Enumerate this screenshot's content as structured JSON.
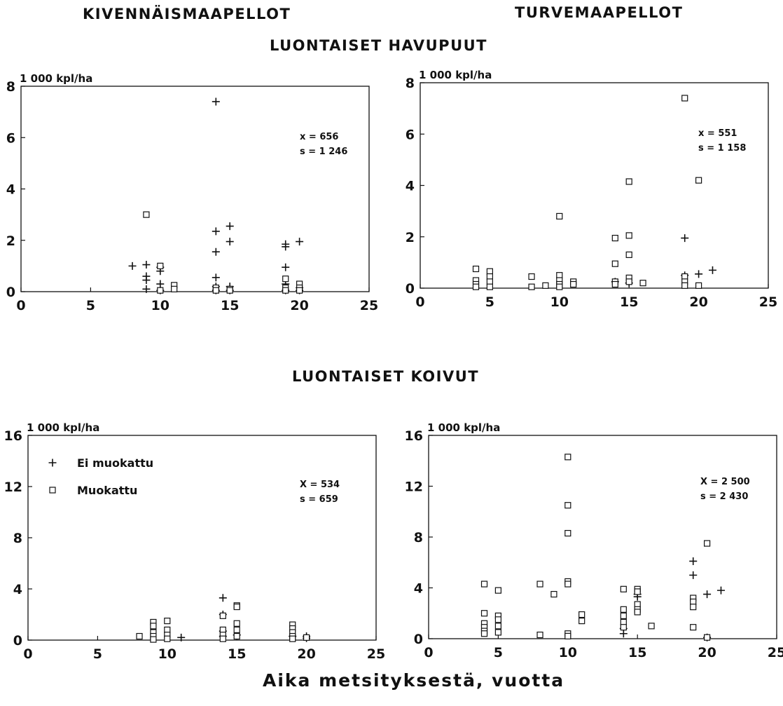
{
  "headings": {
    "col_left": "KIVENNÄISMAAPELLOT",
    "col_right": "TURVEMAAPELLOT",
    "row_top": "LUONTAISET HAVUPUUT",
    "row_bottom": "LUONTAISET KOIVUT",
    "x_caption": "Aika metsityksestä, vuotta"
  },
  "legend": {
    "plus_label": "Ei muokattu",
    "square_label": "Muokattu"
  },
  "chart_data": [
    {
      "type": "scatter",
      "ylabel": "1 000 kpl/ha",
      "xlim": [
        0,
        25
      ],
      "ylim": [
        0,
        8
      ],
      "xticks": [
        0,
        5,
        10,
        15,
        20,
        25
      ],
      "yticks": [
        0,
        2,
        4,
        6,
        8
      ],
      "stats": [
        "x = 656",
        "s = 1 246"
      ],
      "series": [
        {
          "name": "Ei muokattu",
          "marker": "plus",
          "points": [
            [
              8,
              1.0
            ],
            [
              9,
              1.05
            ],
            [
              9,
              0.6
            ],
            [
              9,
              0.45
            ],
            [
              9,
              0.1
            ],
            [
              10,
              0.95
            ],
            [
              10,
              0.8
            ],
            [
              10,
              0.3
            ],
            [
              10,
              0.05
            ],
            [
              14,
              7.4
            ],
            [
              14,
              2.35
            ],
            [
              14,
              1.55
            ],
            [
              14,
              0.55
            ],
            [
              14,
              0.2
            ],
            [
              14,
              0.05
            ],
            [
              15,
              2.55
            ],
            [
              15,
              1.95
            ],
            [
              15,
              0.2
            ],
            [
              15,
              0.05
            ],
            [
              19,
              1.85
            ],
            [
              19,
              1.75
            ],
            [
              19,
              0.95
            ],
            [
              19,
              0.3
            ],
            [
              19,
              0.05
            ],
            [
              20,
              1.95
            ],
            [
              20,
              0.15
            ],
            [
              20,
              0.05
            ]
          ]
        },
        {
          "name": "Muokattu",
          "marker": "square",
          "points": [
            [
              9,
              3.0
            ],
            [
              10,
              1.0
            ],
            [
              10,
              0.05
            ],
            [
              11,
              0.25
            ],
            [
              11,
              0.1
            ],
            [
              14,
              0.15
            ],
            [
              14,
              0.05
            ],
            [
              15,
              0.1
            ],
            [
              15,
              0.05
            ],
            [
              19,
              0.5
            ],
            [
              19,
              0.15
            ],
            [
              19,
              0.05
            ],
            [
              20,
              0.3
            ],
            [
              20,
              0.15
            ],
            [
              20,
              0.05
            ]
          ]
        }
      ]
    },
    {
      "type": "scatter",
      "ylabel": "1 000 kpl/ha",
      "xlim": [
        0,
        25
      ],
      "ylim": [
        0,
        8
      ],
      "xticks": [
        0,
        5,
        10,
        15,
        20,
        25
      ],
      "yticks": [
        0,
        2,
        4,
        6,
        8
      ],
      "stats": [
        "x = 551",
        "s = 1 158"
      ],
      "series": [
        {
          "name": "Ei muokattu",
          "marker": "plus",
          "points": [
            [
              14,
              0.25
            ],
            [
              15,
              0.2
            ],
            [
              19,
              1.95
            ],
            [
              19,
              0.5
            ],
            [
              20,
              0.55
            ],
            [
              21,
              0.7
            ]
          ]
        },
        {
          "name": "Muokattu",
          "marker": "square",
          "points": [
            [
              4,
              0.75
            ],
            [
              4,
              0.3
            ],
            [
              4,
              0.15
            ],
            [
              4,
              0.05
            ],
            [
              5,
              0.65
            ],
            [
              5,
              0.45
            ],
            [
              5,
              0.25
            ],
            [
              5,
              0.05
            ],
            [
              8,
              0.45
            ],
            [
              8,
              0.05
            ],
            [
              9,
              0.1
            ],
            [
              10,
              2.8
            ],
            [
              10,
              0.5
            ],
            [
              10,
              0.3
            ],
            [
              10,
              0.15
            ],
            [
              10,
              0.05
            ],
            [
              11,
              0.25
            ],
            [
              11,
              0.15
            ],
            [
              14,
              1.95
            ],
            [
              14,
              0.95
            ],
            [
              14,
              0.25
            ],
            [
              14,
              0.15
            ],
            [
              15,
              4.15
            ],
            [
              15,
              2.05
            ],
            [
              15,
              1.3
            ],
            [
              15,
              0.4
            ],
            [
              15,
              0.25
            ],
            [
              16,
              0.2
            ],
            [
              19,
              7.4
            ],
            [
              19,
              0.45
            ],
            [
              19,
              0.25
            ],
            [
              19,
              0.1
            ],
            [
              20,
              4.2
            ],
            [
              20,
              0.1
            ]
          ]
        }
      ]
    },
    {
      "type": "scatter",
      "ylabel": "1 000 kpl/ha",
      "xlim": [
        0,
        25
      ],
      "ylim": [
        0,
        16
      ],
      "xticks": [
        0,
        5,
        10,
        15,
        20,
        25
      ],
      "yticks": [
        0,
        4,
        8,
        12,
        16
      ],
      "stats": [
        "X = 534",
        "s = 659"
      ],
      "legend_inside": true,
      "series": [
        {
          "name": "Ei muokattu",
          "marker": "plus",
          "points": [
            [
              11,
              0.2
            ],
            [
              14,
              3.3
            ],
            [
              14,
              2.0
            ],
            [
              14,
              0.7
            ],
            [
              14,
              0.3
            ],
            [
              15,
              0.4
            ],
            [
              19,
              0.3
            ],
            [
              20,
              0.3
            ],
            [
              20,
              0.15
            ]
          ]
        },
        {
          "name": "Muokattu",
          "marker": "square",
          "points": [
            [
              8,
              0.3
            ],
            [
              9,
              1.4
            ],
            [
              9,
              1.1
            ],
            [
              9,
              0.6
            ],
            [
              9,
              0.3
            ],
            [
              9,
              0.05
            ],
            [
              10,
              1.5
            ],
            [
              10,
              0.8
            ],
            [
              10,
              0.4
            ],
            [
              10,
              0.1
            ],
            [
              14,
              1.9
            ],
            [
              14,
              0.8
            ],
            [
              14,
              0.4
            ],
            [
              14,
              0.1
            ],
            [
              15,
              2.7
            ],
            [
              15,
              2.6
            ],
            [
              15,
              1.3
            ],
            [
              15,
              0.8
            ],
            [
              15,
              0.3
            ],
            [
              19,
              1.2
            ],
            [
              19,
              0.9
            ],
            [
              19,
              0.6
            ],
            [
              19,
              0.3
            ],
            [
              19,
              0.1
            ],
            [
              20,
              0.2
            ]
          ]
        }
      ]
    },
    {
      "type": "scatter",
      "ylabel": "1 000 kpl/ha",
      "xlim": [
        0,
        25
      ],
      "ylim": [
        0,
        16
      ],
      "xticks": [
        0,
        5,
        10,
        15,
        20,
        25
      ],
      "yticks": [
        0,
        4,
        8,
        12,
        16
      ],
      "stats": [
        "X = 2 500",
        "s = 2 430"
      ],
      "series": [
        {
          "name": "Ei muokattu",
          "marker": "plus",
          "points": [
            [
              14,
              0.8
            ],
            [
              14,
              0.4
            ],
            [
              15,
              3.5
            ],
            [
              15,
              3.3
            ],
            [
              19,
              6.1
            ],
            [
              19,
              5.0
            ],
            [
              20,
              3.5
            ],
            [
              20,
              0.1
            ],
            [
              21,
              3.8
            ]
          ]
        },
        {
          "name": "Muokattu",
          "marker": "square",
          "points": [
            [
              4,
              4.3
            ],
            [
              4,
              2.0
            ],
            [
              4,
              1.2
            ],
            [
              4,
              0.9
            ],
            [
              4,
              0.6
            ],
            [
              4,
              0.4
            ],
            [
              5,
              3.8
            ],
            [
              5,
              1.8
            ],
            [
              5,
              1.5
            ],
            [
              5,
              1.0
            ],
            [
              5,
              0.5
            ],
            [
              8,
              4.3
            ],
            [
              8,
              0.3
            ],
            [
              9,
              3.5
            ],
            [
              10,
              14.3
            ],
            [
              10,
              10.5
            ],
            [
              10,
              8.3
            ],
            [
              10,
              4.5
            ],
            [
              10,
              4.3
            ],
            [
              10,
              0.4
            ],
            [
              10,
              0.2
            ],
            [
              11,
              1.9
            ],
            [
              11,
              1.4
            ],
            [
              14,
              3.9
            ],
            [
              14,
              2.3
            ],
            [
              14,
              1.8
            ],
            [
              14,
              1.3
            ],
            [
              14,
              0.9
            ],
            [
              15,
              3.9
            ],
            [
              15,
              3.7
            ],
            [
              15,
              2.7
            ],
            [
              15,
              2.3
            ],
            [
              15,
              2.1
            ],
            [
              16,
              1.0
            ],
            [
              19,
              3.2
            ],
            [
              19,
              2.9
            ],
            [
              19,
              2.5
            ],
            [
              19,
              0.9
            ],
            [
              20,
              7.5
            ],
            [
              20,
              0.1
            ]
          ]
        }
      ]
    }
  ]
}
